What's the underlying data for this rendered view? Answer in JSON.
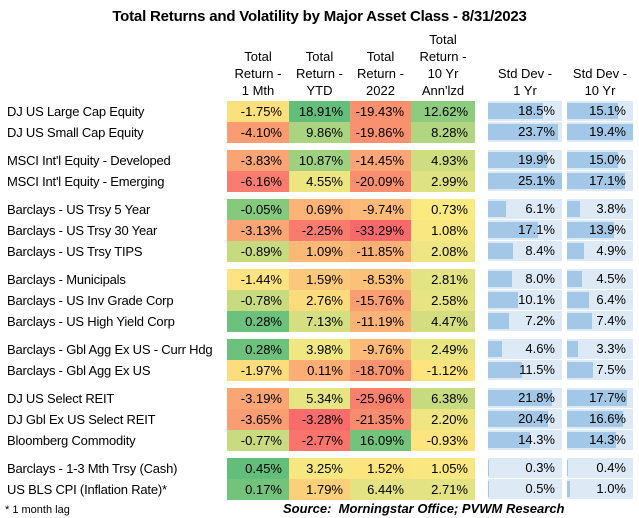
{
  "title": "Total Returns and Volatility by Major Asset Class - 8/31/2023",
  "columns": {
    "asset_class": "",
    "return_1mth": [
      "Total",
      "Return -",
      "1 Mth"
    ],
    "return_ytd": [
      "Total",
      "Return -",
      "YTD"
    ],
    "return_2022": [
      "Total",
      "Return -",
      "2022"
    ],
    "return_10yr": [
      "Total",
      "Return -",
      "10 Yr",
      "Ann'lzd"
    ],
    "stddev_1yr": [
      "Std Dev -",
      "1 Yr"
    ],
    "stddev_10yr": [
      "Std Dev -",
      "10 Yr"
    ]
  },
  "bar_scale_max": [
    25.1,
    19.4
  ],
  "colors": {
    "stddev_cell_bg": "#DDEAF6",
    "stddev_bar": "#A3C7E7",
    "scale_min_red": "#F8696B",
    "scale_mid_yellow": "#FFEB84",
    "scale_max_green": "#63BE7B"
  },
  "rows": [
    {
      "group": 1,
      "label": "DJ US Large Cap Equity",
      "returns": [
        {
          "v": "-1.75%",
          "bg": "#FDE07E"
        },
        {
          "v": "18.91%",
          "bg": "#63BE7B"
        },
        {
          "v": "-19.43%",
          "bg": "#F9916F"
        },
        {
          "v": "12.62%",
          "bg": "#8DCC7E"
        }
      ],
      "stddev": [
        {
          "v": "18.5%"
        },
        {
          "v": "15.1%"
        }
      ]
    },
    {
      "group": 1,
      "label": "DJ US Small Cap Equity",
      "returns": [
        {
          "v": "-4.10%",
          "bg": "#F99C71"
        },
        {
          "v": "9.86%",
          "bg": "#ABD480"
        },
        {
          "v": "-19.86%",
          "bg": "#F9906F"
        },
        {
          "v": "8.28%",
          "bg": "#B1D580"
        }
      ],
      "stddev": [
        {
          "v": "23.7%"
        },
        {
          "v": "19.4%"
        }
      ]
    },
    {
      "group": 2,
      "label": "MSCI Int'l Equity - Developed",
      "returns": [
        {
          "v": "-3.83%",
          "bg": "#FAA375"
        },
        {
          "v": "10.87%",
          "bg": "#9ED17F"
        },
        {
          "v": "-14.45%",
          "bg": "#FAA577"
        },
        {
          "v": "4.93%",
          "bg": "#CFDD81"
        }
      ],
      "stddev": [
        {
          "v": "19.9%"
        },
        {
          "v": "15.0%"
        }
      ]
    },
    {
      "group": 2,
      "label": "MSCI Int'l Equity - Emerging",
      "returns": [
        {
          "v": "-6.16%",
          "bg": "#F87C6F"
        },
        {
          "v": "4.55%",
          "bg": "#EDE482"
        },
        {
          "v": "-20.09%",
          "bg": "#F98F6E"
        },
        {
          "v": "2.99%",
          "bg": "#DFE282"
        }
      ],
      "stddev": [
        {
          "v": "25.1%"
        },
        {
          "v": "17.1%"
        }
      ]
    },
    {
      "group": 3,
      "label": "Barclays - US Trsy 5 Year",
      "returns": [
        {
          "v": "-0.05%",
          "bg": "#85C97D"
        },
        {
          "v": "0.69%",
          "bg": "#FBB376"
        },
        {
          "v": "-9.74%",
          "bg": "#FBBA78"
        },
        {
          "v": "0.73%",
          "bg": "#FBE982"
        }
      ],
      "stddev": [
        {
          "v": "6.1%"
        },
        {
          "v": "3.8%"
        }
      ]
    },
    {
      "group": 3,
      "label": "Barclays - US Trsy 30 Year",
      "returns": [
        {
          "v": "-3.13%",
          "bg": "#F9A674"
        },
        {
          "v": "-2.25%",
          "bg": "#F87B6E"
        },
        {
          "v": "-33.29%",
          "bg": "#F8696B"
        },
        {
          "v": "1.08%",
          "bg": "#F9E881"
        }
      ],
      "stddev": [
        {
          "v": "17.1%"
        },
        {
          "v": "13.9%"
        }
      ]
    },
    {
      "group": 3,
      "label": "Barclays - US Trsy TIPS",
      "returns": [
        {
          "v": "-0.89%",
          "bg": "#C6DA80"
        },
        {
          "v": "1.09%",
          "bg": "#FBB977"
        },
        {
          "v": "-11.85%",
          "bg": "#FAB176"
        },
        {
          "v": "2.08%",
          "bg": "#EEE684"
        }
      ],
      "stddev": [
        {
          "v": "8.4%"
        },
        {
          "v": "4.9%"
        }
      ]
    },
    {
      "group": 4,
      "label": "Barclays - Municipals",
      "returns": [
        {
          "v": "-1.44%",
          "bg": "#FDE381"
        },
        {
          "v": "1.59%",
          "bg": "#FBC77A"
        },
        {
          "v": "-8.53%",
          "bg": "#FBC179"
        },
        {
          "v": "2.81%",
          "bg": "#E2E383"
        }
      ],
      "stddev": [
        {
          "v": "8.0%"
        },
        {
          "v": "4.5%"
        }
      ]
    },
    {
      "group": 4,
      "label": "Barclays - US Inv Grade Corp",
      "returns": [
        {
          "v": "-0.78%",
          "bg": "#C8DB81"
        },
        {
          "v": "2.76%",
          "bg": "#FBDC7D"
        },
        {
          "v": "-15.76%",
          "bg": "#FA9F73"
        },
        {
          "v": "2.58%",
          "bg": "#E6E483"
        }
      ],
      "stddev": [
        {
          "v": "10.1%"
        },
        {
          "v": "6.4%"
        }
      ]
    },
    {
      "group": 4,
      "label": "Barclays - US High Yield Corp",
      "returns": [
        {
          "v": "0.28%",
          "bg": "#6CC17C"
        },
        {
          "v": "7.13%",
          "bg": "#D5DF81"
        },
        {
          "v": "-11.19%",
          "bg": "#FAB377"
        },
        {
          "v": "4.47%",
          "bg": "#D4DE81"
        }
      ],
      "stddev": [
        {
          "v": "7.2%"
        },
        {
          "v": "7.4%"
        }
      ]
    },
    {
      "group": 5,
      "label": "Barclays - Gbl Agg Ex US - Curr Hdg",
      "returns": [
        {
          "v": "0.28%",
          "bg": "#6CC17C"
        },
        {
          "v": "3.98%",
          "bg": "#F0E682"
        },
        {
          "v": "-9.76%",
          "bg": "#FBBA78"
        },
        {
          "v": "2.49%",
          "bg": "#EAE583"
        }
      ],
      "stddev": [
        {
          "v": "4.6%"
        },
        {
          "v": "3.3%"
        }
      ]
    },
    {
      "group": 5,
      "label": "Barclays - Gbl Agg Ex US",
      "returns": [
        {
          "v": "-1.97%",
          "bg": "#FCDD7D"
        },
        {
          "v": "0.11%",
          "bg": "#FAAD75"
        },
        {
          "v": "-18.70%",
          "bg": "#F99470"
        },
        {
          "v": "-1.12%",
          "bg": "#FDE47E"
        }
      ],
      "stddev": [
        {
          "v": "11.5%"
        },
        {
          "v": "7.5%"
        }
      ]
    },
    {
      "group": 6,
      "label": "DJ US Select REIT",
      "returns": [
        {
          "v": "-3.19%",
          "bg": "#F9A574"
        },
        {
          "v": "5.34%",
          "bg": "#E7E482"
        },
        {
          "v": "-25.96%",
          "bg": "#F8816D"
        },
        {
          "v": "6.38%",
          "bg": "#C6DA80"
        }
      ],
      "stddev": [
        {
          "v": "21.8%"
        },
        {
          "v": "17.7%"
        }
      ]
    },
    {
      "group": 6,
      "label": "DJ Gbl Ex US Select REIT",
      "returns": [
        {
          "v": "-3.65%",
          "bg": "#F99D72"
        },
        {
          "v": "-3.28%",
          "bg": "#F86C6B"
        },
        {
          "v": "-21.35%",
          "bg": "#F98C6E"
        },
        {
          "v": "2.20%",
          "bg": "#F0E681"
        }
      ],
      "stddev": [
        {
          "v": "20.4%"
        },
        {
          "v": "16.6%"
        }
      ]
    },
    {
      "group": 6,
      "label": "Bloomberg Commodity",
      "returns": [
        {
          "v": "-0.77%",
          "bg": "#C8DB81"
        },
        {
          "v": "-2.77%",
          "bg": "#F8746D"
        },
        {
          "v": "16.09%",
          "bg": "#74C37C"
        },
        {
          "v": "-0.93%",
          "bg": "#FDE47E"
        }
      ],
      "stddev": [
        {
          "v": "14.3%"
        },
        {
          "v": "14.3%"
        }
      ]
    },
    {
      "group": 7,
      "label": "Barclays - 1-3 Mth Trsy (Cash)",
      "returns": [
        {
          "v": "0.45%",
          "bg": "#63BE7B"
        },
        {
          "v": "3.25%",
          "bg": "#F6E881"
        },
        {
          "v": "1.52%",
          "bg": "#FCE47E"
        },
        {
          "v": "1.05%",
          "bg": "#F9E881"
        }
      ],
      "stddev": [
        {
          "v": "0.3%"
        },
        {
          "v": "0.4%"
        }
      ]
    },
    {
      "group": 7,
      "label": "US BLS CPI (Inflation Rate)*",
      "returns": [
        {
          "v": "0.17%",
          "bg": "#74C37C"
        },
        {
          "v": "1.79%",
          "bg": "#FBD07B"
        },
        {
          "v": "6.44%",
          "bg": "#E3E383"
        },
        {
          "v": "2.71%",
          "bg": "#E3E383"
        }
      ],
      "stddev": [
        {
          "v": "0.5%"
        },
        {
          "v": "1.0%"
        }
      ]
    }
  ],
  "footnote": "* 1 month lag",
  "source": "Source:  Morningstar Office; PVWM Research"
}
